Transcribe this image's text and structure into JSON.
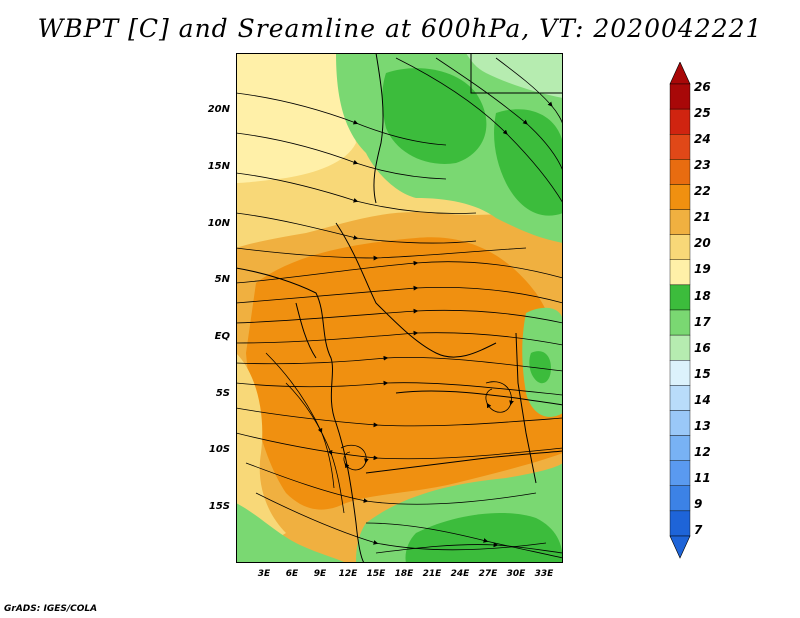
{
  "title": "WBPT [C] and Sreamline at 600hPa, VT: 2020042221",
  "footer": "GrADS: IGES/COLA",
  "colors": {
    "c7": "#1e64d8",
    "c9": "#3c82e6",
    "c11": "#5a9af0",
    "c12": "#78b2f4",
    "c13": "#9ac8f8",
    "c14": "#b9dcfa",
    "c15": "#dcf2fc",
    "c16": "#b6ecb0",
    "c17": "#7ad872",
    "c18": "#3cbc3c",
    "c19": "#fff0a8",
    "c20": "#f8d878",
    "c21": "#f0b040",
    "c22": "#f09010",
    "c23": "#e86c10",
    "c24": "#e04818",
    "c25": "#d02410",
    "c26": "#a80808"
  },
  "map": {
    "lat_labels": [
      "20N",
      "15N",
      "10N",
      "5N",
      "EQ",
      "5S",
      "10S",
      "15S"
    ],
    "lon_labels": [
      "3E",
      "6E",
      "9E",
      "12E",
      "15E",
      "18E",
      "21E",
      "24E",
      "27E",
      "30E",
      "33E"
    ]
  },
  "colorbar": {
    "labels": [
      "26",
      "25",
      "24",
      "23",
      "22",
      "21",
      "20",
      "19",
      "18",
      "17",
      "16",
      "15",
      "14",
      "13",
      "12",
      "11",
      "9",
      "7"
    ],
    "colors": [
      "#a80808",
      "#d02410",
      "#e04818",
      "#e86c10",
      "#f09010",
      "#f0b040",
      "#f8d878",
      "#fff0a8",
      "#3cbc3c",
      "#7ad872",
      "#b6ecb0",
      "#dcf2fc",
      "#b9dcfa",
      "#9ac8f8",
      "#78b2f4",
      "#5a9af0",
      "#3c82e6",
      "#1e64d8"
    ]
  }
}
